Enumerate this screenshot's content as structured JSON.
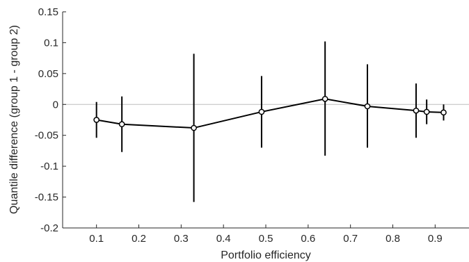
{
  "chart_data": {
    "type": "line",
    "xlabel": "Portfolio efficiency",
    "ylabel": "Quantile difference (group 1 - group 2)",
    "xlim": [
      0.02,
      0.98
    ],
    "ylim": [
      -0.2,
      0.15
    ],
    "xticks": [
      0.1,
      0.2,
      0.3,
      0.4,
      0.5,
      0.6,
      0.7,
      0.8,
      0.9
    ],
    "xtick_labels": [
      "0.1",
      "0.2",
      "0.3",
      "0.4",
      "0.5",
      "0.6",
      "0.7",
      "0.8",
      "0.9"
    ],
    "yticks": [
      -0.2,
      -0.15,
      -0.1,
      -0.05,
      0,
      0.05,
      0.1,
      0.15
    ],
    "ytick_labels": [
      "-0.2",
      "-0.15",
      "-0.1",
      "-0.05",
      "0",
      "0.05",
      "0.1",
      "0.15"
    ],
    "reference_line_y": 0,
    "grid": false,
    "points": [
      {
        "x": 0.1,
        "y": -0.025,
        "lower": -0.054,
        "upper": 0.004
      },
      {
        "x": 0.16,
        "y": -0.032,
        "lower": -0.077,
        "upper": 0.013
      },
      {
        "x": 0.33,
        "y": -0.038,
        "lower": -0.158,
        "upper": 0.082
      },
      {
        "x": 0.49,
        "y": -0.012,
        "lower": -0.07,
        "upper": 0.046
      },
      {
        "x": 0.64,
        "y": 0.009,
        "lower": -0.083,
        "upper": 0.102
      },
      {
        "x": 0.74,
        "y": -0.003,
        "lower": -0.07,
        "upper": 0.065
      },
      {
        "x": 0.855,
        "y": -0.01,
        "lower": -0.054,
        "upper": 0.034
      },
      {
        "x": 0.88,
        "y": -0.012,
        "lower": -0.032,
        "upper": 0.008
      },
      {
        "x": 0.92,
        "y": -0.013,
        "lower": -0.026,
        "upper": 0.0
      }
    ],
    "colors": {
      "line": "#000000",
      "marker_fill": "#ffffff",
      "axis": "#262626",
      "reference_line": "#bdbdbd"
    }
  }
}
